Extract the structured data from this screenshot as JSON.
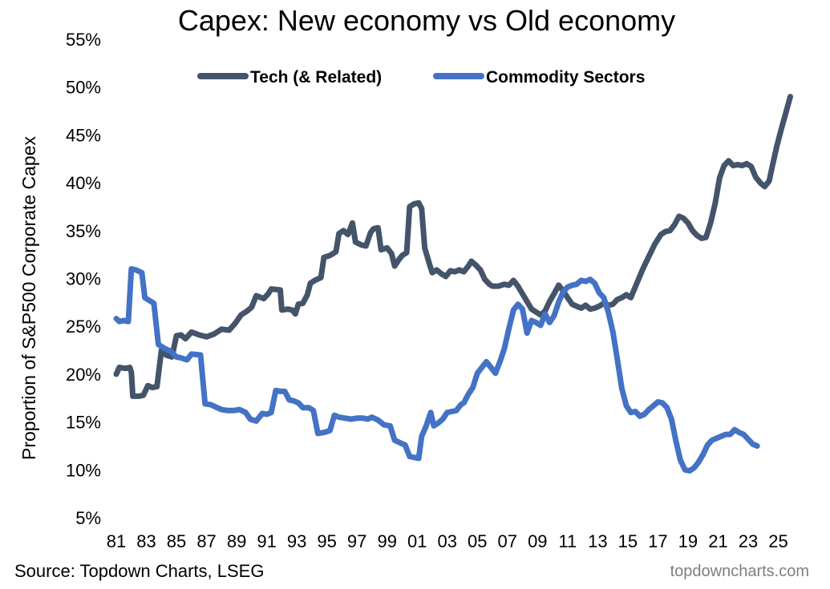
{
  "chart_data": {
    "type": "line",
    "title": "Capex: New economy vs Old economy",
    "xlabel": "",
    "ylabel": "Proportion of S&P500 Corporate Capex",
    "xlim": [
      1981,
      2026.2
    ],
    "ylim": [
      5,
      55
    ],
    "y_ticks": [
      5,
      10,
      15,
      20,
      25,
      30,
      35,
      40,
      45,
      50,
      55
    ],
    "y_tick_labels": [
      "5%",
      "10%",
      "15%",
      "20%",
      "25%",
      "30%",
      "35%",
      "40%",
      "45%",
      "50%",
      "55%"
    ],
    "x_ticks": [
      1981,
      1983,
      1985,
      1987,
      1989,
      1991,
      1993,
      1995,
      1997,
      1999,
      2001,
      2003,
      2005,
      2007,
      2009,
      2011,
      2013,
      2015,
      2017,
      2019,
      2021,
      2023,
      2025
    ],
    "x_tick_labels": [
      "81",
      "83",
      "85",
      "87",
      "89",
      "91",
      "93",
      "95",
      "97",
      "99",
      "01",
      "03",
      "05",
      "07",
      "09",
      "11",
      "13",
      "15",
      "17",
      "19",
      "21",
      "23",
      "25"
    ],
    "legend_position": "top",
    "series": [
      {
        "name": "Tech (& Related)",
        "color": "#44546a",
        "points": [
          [
            1981.0,
            20.0
          ],
          [
            1981.2,
            20.7
          ],
          [
            1981.6,
            20.6
          ],
          [
            1981.9,
            20.7
          ],
          [
            1982.0,
            20.2
          ],
          [
            1982.1,
            17.7
          ],
          [
            1982.5,
            17.7
          ],
          [
            1982.8,
            17.8
          ],
          [
            1983.1,
            18.8
          ],
          [
            1983.4,
            18.6
          ],
          [
            1983.7,
            18.7
          ],
          [
            1984.0,
            22.5
          ],
          [
            1984.3,
            22.0
          ],
          [
            1984.7,
            21.8
          ],
          [
            1985.0,
            24.0
          ],
          [
            1985.3,
            24.1
          ],
          [
            1985.6,
            23.7
          ],
          [
            1986.0,
            24.4
          ],
          [
            1986.5,
            24.1
          ],
          [
            1987.0,
            23.9
          ],
          [
            1987.5,
            24.2
          ],
          [
            1988.0,
            24.7
          ],
          [
            1988.5,
            24.6
          ],
          [
            1988.9,
            25.3
          ],
          [
            1989.3,
            26.2
          ],
          [
            1989.7,
            26.6
          ],
          [
            1990.0,
            27.0
          ],
          [
            1990.3,
            28.2
          ],
          [
            1990.8,
            27.9
          ],
          [
            1991.1,
            28.4
          ],
          [
            1991.3,
            28.9
          ],
          [
            1991.9,
            28.8
          ],
          [
            1992.0,
            26.7
          ],
          [
            1992.4,
            26.8
          ],
          [
            1992.7,
            26.7
          ],
          [
            1992.9,
            26.3
          ],
          [
            1993.1,
            27.3
          ],
          [
            1993.4,
            27.4
          ],
          [
            1993.7,
            28.3
          ],
          [
            1993.9,
            29.5
          ],
          [
            1994.2,
            29.8
          ],
          [
            1994.6,
            30.1
          ],
          [
            1994.8,
            32.2
          ],
          [
            1995.2,
            32.4
          ],
          [
            1995.6,
            32.8
          ],
          [
            1995.8,
            34.7
          ],
          [
            1996.1,
            35.0
          ],
          [
            1996.4,
            34.6
          ],
          [
            1996.7,
            35.8
          ],
          [
            1996.9,
            33.8
          ],
          [
            1997.3,
            33.5
          ],
          [
            1997.6,
            33.4
          ],
          [
            1997.9,
            34.8
          ],
          [
            1998.1,
            35.2
          ],
          [
            1998.4,
            35.3
          ],
          [
            1998.6,
            33.0
          ],
          [
            1999.0,
            33.2
          ],
          [
            1999.3,
            32.6
          ],
          [
            1999.5,
            31.3
          ],
          [
            1999.8,
            32.0
          ],
          [
            2000.0,
            32.4
          ],
          [
            2000.3,
            32.7
          ],
          [
            2000.5,
            37.5
          ],
          [
            2000.8,
            37.8
          ],
          [
            2001.1,
            37.9
          ],
          [
            2001.3,
            37.3
          ],
          [
            2001.5,
            33.2
          ],
          [
            2001.8,
            31.6
          ],
          [
            2002.0,
            30.6
          ],
          [
            2002.3,
            30.9
          ],
          [
            2002.6,
            30.5
          ],
          [
            2002.9,
            30.2
          ],
          [
            2003.2,
            30.8
          ],
          [
            2003.5,
            30.7
          ],
          [
            2003.8,
            30.9
          ],
          [
            2004.1,
            30.7
          ],
          [
            2004.4,
            31.3
          ],
          [
            2004.6,
            31.8
          ],
          [
            2004.9,
            31.4
          ],
          [
            2005.2,
            30.9
          ],
          [
            2005.5,
            29.9
          ],
          [
            2005.8,
            29.4
          ],
          [
            2006.0,
            29.2
          ],
          [
            2006.4,
            29.2
          ],
          [
            2006.8,
            29.4
          ],
          [
            2007.1,
            29.3
          ],
          [
            2007.4,
            29.8
          ],
          [
            2007.7,
            29.2
          ],
          [
            2008.0,
            28.4
          ],
          [
            2008.3,
            27.6
          ],
          [
            2008.6,
            26.8
          ],
          [
            2008.9,
            26.5
          ],
          [
            2009.2,
            26.2
          ],
          [
            2009.5,
            26.6
          ],
          [
            2009.8,
            27.6
          ],
          [
            2010.1,
            28.4
          ],
          [
            2010.4,
            29.3
          ],
          [
            2010.7,
            28.7
          ],
          [
            2011.0,
            28.0
          ],
          [
            2011.3,
            27.3
          ],
          [
            2011.6,
            27.1
          ],
          [
            2011.9,
            26.9
          ],
          [
            2012.2,
            27.2
          ],
          [
            2012.5,
            26.8
          ],
          [
            2012.8,
            26.9
          ],
          [
            2013.1,
            27.1
          ],
          [
            2013.4,
            27.4
          ],
          [
            2013.7,
            27.2
          ],
          [
            2014.0,
            27.3
          ],
          [
            2014.3,
            27.8
          ],
          [
            2014.6,
            28.0
          ],
          [
            2014.9,
            28.3
          ],
          [
            2015.2,
            28.0
          ],
          [
            2015.6,
            29.5
          ],
          [
            2016.0,
            31.0
          ],
          [
            2016.4,
            32.3
          ],
          [
            2016.8,
            33.6
          ],
          [
            2017.2,
            34.6
          ],
          [
            2017.5,
            34.9
          ],
          [
            2017.8,
            35.0
          ],
          [
            2018.1,
            35.6
          ],
          [
            2018.4,
            36.5
          ],
          [
            2018.7,
            36.3
          ],
          [
            2019.0,
            35.8
          ],
          [
            2019.3,
            35.0
          ],
          [
            2019.6,
            34.5
          ],
          [
            2019.9,
            34.2
          ],
          [
            2020.2,
            34.3
          ],
          [
            2020.5,
            35.8
          ],
          [
            2020.8,
            37.8
          ],
          [
            2021.1,
            40.5
          ],
          [
            2021.4,
            41.8
          ],
          [
            2021.7,
            42.3
          ],
          [
            2022.0,
            41.8
          ],
          [
            2022.3,
            41.9
          ],
          [
            2022.6,
            41.8
          ],
          [
            2022.9,
            42.0
          ],
          [
            2023.2,
            41.7
          ],
          [
            2023.5,
            40.6
          ],
          [
            2023.8,
            40.0
          ],
          [
            2024.1,
            39.6
          ],
          [
            2024.4,
            40.2
          ],
          [
            2024.6,
            41.7
          ],
          [
            2024.9,
            43.8
          ],
          [
            2025.2,
            45.6
          ],
          [
            2025.5,
            47.3
          ],
          [
            2025.8,
            49.0
          ]
        ]
      },
      {
        "name": "Commodity Sectors",
        "color": "#4472c4",
        "points": [
          [
            1981.0,
            25.8
          ],
          [
            1981.2,
            25.5
          ],
          [
            1981.5,
            25.6
          ],
          [
            1981.8,
            25.5
          ],
          [
            1982.0,
            31.0
          ],
          [
            1982.3,
            30.9
          ],
          [
            1982.7,
            30.6
          ],
          [
            1982.9,
            28.0
          ],
          [
            1983.1,
            27.8
          ],
          [
            1983.5,
            27.4
          ],
          [
            1983.8,
            23.1
          ],
          [
            1984.2,
            22.7
          ],
          [
            1984.6,
            22.4
          ],
          [
            1985.0,
            21.8
          ],
          [
            1985.3,
            21.7
          ],
          [
            1985.7,
            21.5
          ],
          [
            1986.0,
            22.1
          ],
          [
            1986.6,
            22.0
          ],
          [
            1986.9,
            16.9
          ],
          [
            1987.3,
            16.8
          ],
          [
            1987.7,
            16.5
          ],
          [
            1988.0,
            16.3
          ],
          [
            1988.4,
            16.2
          ],
          [
            1988.8,
            16.2
          ],
          [
            1989.2,
            16.3
          ],
          [
            1989.6,
            16.0
          ],
          [
            1989.9,
            15.3
          ],
          [
            1990.3,
            15.1
          ],
          [
            1990.7,
            15.9
          ],
          [
            1991.0,
            15.8
          ],
          [
            1991.3,
            16.0
          ],
          [
            1991.6,
            18.3
          ],
          [
            1991.9,
            18.2
          ],
          [
            1992.2,
            18.2
          ],
          [
            1992.5,
            17.3
          ],
          [
            1992.8,
            17.2
          ],
          [
            1993.1,
            17.0
          ],
          [
            1993.4,
            16.5
          ],
          [
            1993.8,
            16.5
          ],
          [
            1994.1,
            16.2
          ],
          [
            1994.4,
            13.8
          ],
          [
            1994.8,
            13.9
          ],
          [
            1995.2,
            14.1
          ],
          [
            1995.5,
            15.7
          ],
          [
            1995.8,
            15.5
          ],
          [
            1996.2,
            15.4
          ],
          [
            1996.6,
            15.3
          ],
          [
            1997.0,
            15.4
          ],
          [
            1997.4,
            15.4
          ],
          [
            1997.7,
            15.3
          ],
          [
            1998.0,
            15.5
          ],
          [
            1998.4,
            15.2
          ],
          [
            1998.8,
            14.7
          ],
          [
            1999.2,
            14.6
          ],
          [
            1999.5,
            13.1
          ],
          [
            1999.9,
            12.8
          ],
          [
            2000.2,
            12.6
          ],
          [
            2000.5,
            11.4
          ],
          [
            2000.8,
            11.3
          ],
          [
            2001.1,
            11.2
          ],
          [
            2001.3,
            13.5
          ],
          [
            2001.6,
            14.6
          ],
          [
            2001.9,
            16.0
          ],
          [
            2002.1,
            14.6
          ],
          [
            2002.4,
            14.9
          ],
          [
            2002.7,
            15.3
          ],
          [
            2003.0,
            16.0
          ],
          [
            2003.3,
            16.1
          ],
          [
            2003.6,
            16.2
          ],
          [
            2003.9,
            16.8
          ],
          [
            2004.1,
            17.0
          ],
          [
            2004.4,
            17.9
          ],
          [
            2004.7,
            18.6
          ],
          [
            2005.0,
            20.1
          ],
          [
            2005.3,
            20.7
          ],
          [
            2005.6,
            21.3
          ],
          [
            2005.9,
            20.7
          ],
          [
            2006.2,
            20.1
          ],
          [
            2006.5,
            21.3
          ],
          [
            2006.8,
            22.7
          ],
          [
            2007.1,
            24.8
          ],
          [
            2007.4,
            26.7
          ],
          [
            2007.7,
            27.3
          ],
          [
            2008.0,
            26.8
          ],
          [
            2008.3,
            24.3
          ],
          [
            2008.6,
            25.6
          ],
          [
            2008.9,
            25.4
          ],
          [
            2009.2,
            25.1
          ],
          [
            2009.5,
            26.3
          ],
          [
            2009.8,
            25.4
          ],
          [
            2010.1,
            26.1
          ],
          [
            2010.4,
            27.5
          ],
          [
            2010.7,
            28.6
          ],
          [
            2011.0,
            29.1
          ],
          [
            2011.3,
            29.3
          ],
          [
            2011.6,
            29.4
          ],
          [
            2011.9,
            29.8
          ],
          [
            2012.2,
            29.7
          ],
          [
            2012.5,
            29.9
          ],
          [
            2012.8,
            29.5
          ],
          [
            2013.1,
            28.5
          ],
          [
            2013.4,
            28.0
          ],
          [
            2013.7,
            26.5
          ],
          [
            2014.0,
            24.5
          ],
          [
            2014.3,
            21.6
          ],
          [
            2014.6,
            18.5
          ],
          [
            2014.9,
            16.7
          ],
          [
            2015.2,
            16.0
          ],
          [
            2015.5,
            16.1
          ],
          [
            2015.8,
            15.6
          ],
          [
            2016.1,
            15.8
          ],
          [
            2016.4,
            16.3
          ],
          [
            2016.7,
            16.7
          ],
          [
            2017.0,
            17.1
          ],
          [
            2017.3,
            17.0
          ],
          [
            2017.6,
            16.5
          ],
          [
            2017.9,
            15.3
          ],
          [
            2018.2,
            13.0
          ],
          [
            2018.5,
            11.0
          ],
          [
            2018.8,
            10.0
          ],
          [
            2019.1,
            9.9
          ],
          [
            2019.4,
            10.2
          ],
          [
            2019.7,
            10.8
          ],
          [
            2020.0,
            11.6
          ],
          [
            2020.3,
            12.6
          ],
          [
            2020.6,
            13.1
          ],
          [
            2020.9,
            13.3
          ],
          [
            2021.2,
            13.5
          ],
          [
            2021.5,
            13.7
          ],
          [
            2021.8,
            13.7
          ],
          [
            2022.1,
            14.2
          ],
          [
            2022.4,
            13.9
          ],
          [
            2022.7,
            13.7
          ],
          [
            2023.0,
            13.2
          ],
          [
            2023.3,
            12.7
          ],
          [
            2023.6,
            12.5
          ]
        ]
      }
    ]
  },
  "footer": {
    "source": "Source: Topdown Charts, LSEG",
    "brand": "topdowncharts.com"
  }
}
